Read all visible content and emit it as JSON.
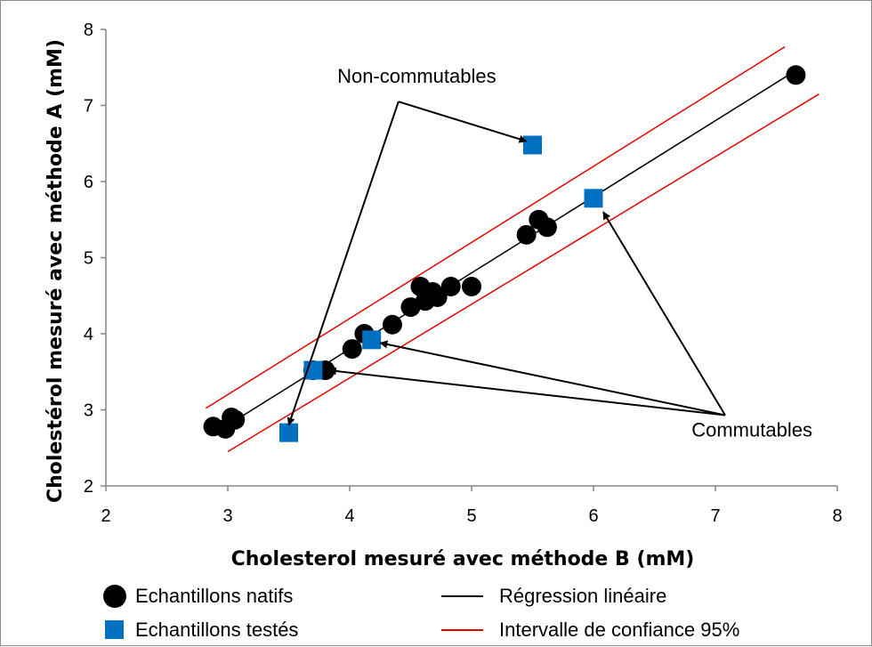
{
  "chart_data": {
    "type": "scatter",
    "xlabel": "Cholesterol mesuré avec méthode B (mM)",
    "ylabel": "Cholestérol mesuré avec méthode A (mM)",
    "xlim": [
      2,
      8
    ],
    "ylim": [
      2,
      8
    ],
    "x_ticks": [
      2,
      3,
      4,
      5,
      6,
      7,
      8
    ],
    "y_ticks": [
      2,
      3,
      4,
      5,
      6,
      7,
      8
    ],
    "grid": false,
    "legend_position": "bottom",
    "series": [
      {
        "name": "Echantillons natifs",
        "marker": "circle",
        "color": "#000000",
        "points": [
          [
            2.88,
            2.78
          ],
          [
            2.98,
            2.75
          ],
          [
            3.03,
            2.9
          ],
          [
            3.06,
            2.87
          ],
          [
            3.7,
            3.52
          ],
          [
            3.8,
            3.52
          ],
          [
            4.02,
            3.8
          ],
          [
            4.12,
            4.0
          ],
          [
            4.35,
            4.12
          ],
          [
            4.5,
            4.35
          ],
          [
            4.58,
            4.62
          ],
          [
            4.62,
            4.43
          ],
          [
            4.68,
            4.55
          ],
          [
            4.72,
            4.48
          ],
          [
            4.83,
            4.62
          ],
          [
            5.0,
            4.62
          ],
          [
            5.45,
            5.3
          ],
          [
            5.55,
            5.5
          ],
          [
            5.62,
            5.4
          ],
          [
            7.66,
            7.4
          ]
        ]
      },
      {
        "name": "Echantillons testés",
        "marker": "square",
        "color": "#0070c0",
        "points": [
          [
            3.5,
            2.7
          ],
          [
            3.7,
            3.52
          ],
          [
            4.18,
            3.92
          ],
          [
            5.5,
            6.48
          ],
          [
            6.0,
            5.78
          ]
        ]
      },
      {
        "name": "Régression linéaire",
        "type": "line",
        "color": "#000000",
        "points": [
          [
            2.95,
            2.75
          ],
          [
            7.65,
            7.45
          ]
        ]
      },
      {
        "name": "Intervalle de confiance 95%",
        "type": "line",
        "color": "#e60000",
        "upper": [
          [
            2.82,
            3.02
          ],
          [
            7.57,
            7.77
          ]
        ],
        "lower": [
          [
            3.0,
            2.45
          ],
          [
            7.85,
            7.15
          ]
        ]
      }
    ],
    "annotations": [
      {
        "text": "Non-commutables",
        "label_at": [
          4.55,
          7.3
        ],
        "hub": [
          4.4,
          7.05
        ],
        "targets": [
          [
            5.45,
            6.53
          ],
          [
            3.5,
            2.8
          ]
        ]
      },
      {
        "text": "Commutables",
        "label_at": [
          7.3,
          2.65
        ],
        "hub": [
          7.08,
          2.93
        ],
        "targets": [
          [
            6.08,
            5.6
          ],
          [
            4.25,
            3.88
          ],
          [
            3.83,
            3.52
          ]
        ]
      }
    ]
  }
}
